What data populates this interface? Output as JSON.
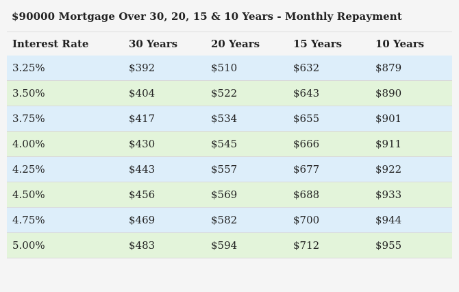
{
  "title": "$90000 Mortgage Over 30, 20, 15 & 10 Years - Monthly Repayment",
  "table": {
    "headers": [
      "Interest Rate",
      "30 Years",
      "20 Years",
      "15 Years",
      "10 Years"
    ],
    "rows": [
      [
        "3.25%",
        "$392",
        "$510",
        "$632",
        "$879"
      ],
      [
        "3.50%",
        "$404",
        "$522",
        "$643",
        "$890"
      ],
      [
        "3.75%",
        "$417",
        "$534",
        "$655",
        "$901"
      ],
      [
        "4.00%",
        "$430",
        "$545",
        "$666",
        "$911"
      ],
      [
        "4.25%",
        "$443",
        "$557",
        "$677",
        "$922"
      ],
      [
        "4.50%",
        "$456",
        "$569",
        "$688",
        "$933"
      ],
      [
        "4.75%",
        "$469",
        "$582",
        "$700",
        "$944"
      ],
      [
        "5.00%",
        "$483",
        "$594",
        "$712",
        "$955"
      ]
    ]
  },
  "colors": {
    "row_odd": "#ddeefa",
    "row_even": "#e3f4da",
    "background": "#f5f5f5"
  }
}
